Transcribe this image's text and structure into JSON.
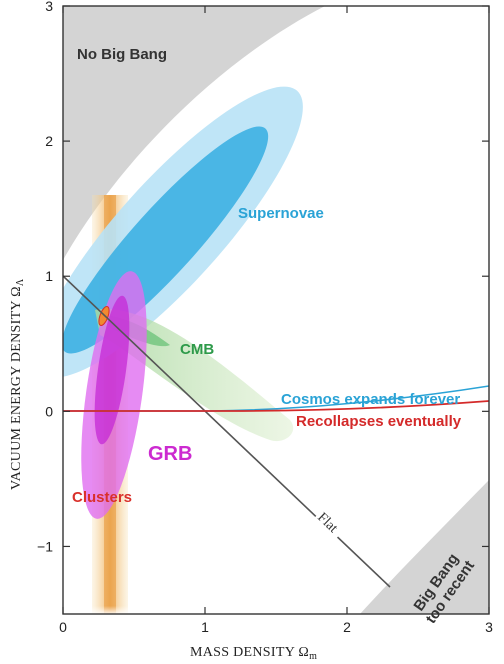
{
  "chart_data": {
    "type": "contour",
    "xlabel": "MASS DENSITY Ω",
    "xlabel_sub": "m",
    "ylabel": "VACUUM ENERGY DENSITY Ω",
    "ylabel_sub": "Λ",
    "xlim": [
      0,
      3
    ],
    "ylim": [
      -1.5,
      3
    ],
    "xticks": [
      "0",
      "1",
      "2",
      "3"
    ],
    "yticks": [
      "−1",
      "0",
      "1",
      "2",
      "3"
    ],
    "regions": {
      "no_big_bang": "No Big Bang",
      "big_bang_too_recent_line1": "Big Bang",
      "big_bang_too_recent_line2": "too recent"
    },
    "constraints": [
      {
        "name": "Supernovae",
        "color": "#2aa3d6",
        "center": [
          0.95,
          1.3
        ],
        "angle_deg": 48
      },
      {
        "name": "CMB",
        "color": "#2e9a4a",
        "center": [
          0.65,
          0.35
        ],
        "angle_deg": -34
      },
      {
        "name": "GRB",
        "color": "#cc2ad0",
        "center": [
          0.4,
          0.25
        ],
        "angle_deg": 85
      },
      {
        "name": "Clusters",
        "color": "#d9302a",
        "center": [
          0.3,
          0.3
        ],
        "band": [
          0.2,
          0.45
        ]
      }
    ],
    "lines": [
      {
        "name": "Flat",
        "equation": "Ω_Λ = 1 − Ω_m",
        "color": "#555555"
      },
      {
        "name": "Cosmos expands forever",
        "color": "#2aa3d6"
      },
      {
        "name": "Recollapses eventually",
        "color": "#d42a2a"
      }
    ],
    "grid": false
  }
}
